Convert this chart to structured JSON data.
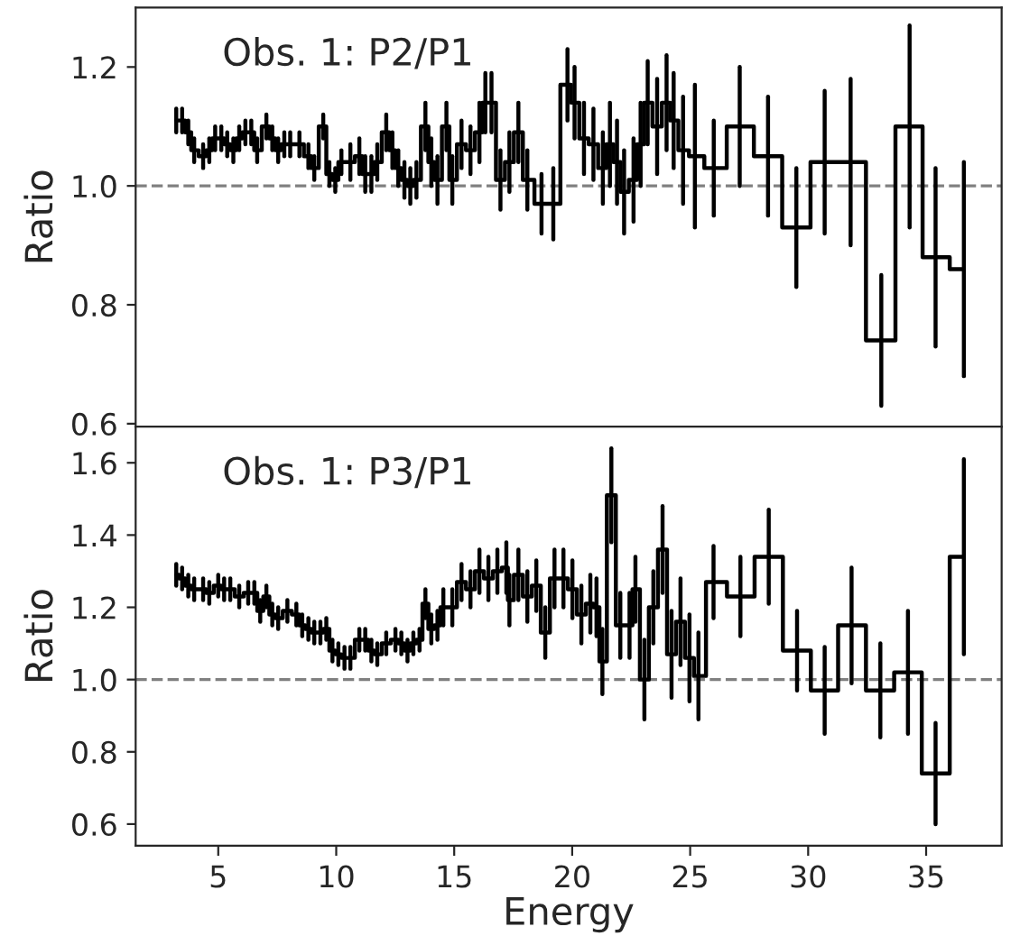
{
  "chart_data": [
    {
      "type": "step",
      "ylabel": "Ratio",
      "annotations": [
        "Obs. 1: P2/P1"
      ],
      "xlim": [
        1.5,
        38.2
      ],
      "ylim": [
        0.595,
        1.3
      ],
      "xticks": [
        5,
        10,
        15,
        20,
        25,
        30,
        35
      ],
      "yticks": [
        0.6,
        0.8,
        {
          "value": 1.0,
          "label": "1.0"
        },
        1.2
      ],
      "tick_labels": "y",
      "grid": false,
      "legend": false,
      "ref_lines": [
        {
          "axis": "y",
          "value": 1.0,
          "color": "#808080",
          "line_style": "dashed"
        }
      ],
      "series": [
        {
          "color": "#000000",
          "x": [
            3.22,
            3.47,
            3.73,
            3.98,
            4.36,
            4.62,
            4.87,
            5.13,
            5.38,
            5.64,
            5.89,
            6.15,
            6.4,
            6.65,
            7.04,
            7.29,
            7.54,
            7.8,
            8.05,
            8.44,
            8.82,
            9.07,
            9.45,
            9.71,
            9.96,
            10.22,
            10.6,
            10.98,
            11.23,
            11.49,
            11.74,
            12.12,
            12.38,
            12.63,
            12.89,
            13.14,
            13.4,
            13.78,
            14.03,
            14.29,
            14.67,
            14.92,
            15.31,
            15.69,
            16.07,
            16.32,
            16.58,
            16.96,
            17.34,
            17.72,
            18.1,
            18.7,
            19.2,
            19.8,
            20.1,
            20.5,
            20.9,
            21.3,
            21.6,
            21.9,
            22.2,
            22.6,
            22.9,
            23.2,
            23.6,
            24.0,
            24.3,
            24.7,
            25.2,
            26.0,
            27.1,
            28.3,
            29.5,
            30.7,
            31.8,
            33.1,
            34.3,
            35.4,
            36.6
          ],
          "values": [
            1.11,
            1.11,
            1.09,
            1.06,
            1.05,
            1.06,
            1.08,
            1.08,
            1.07,
            1.06,
            1.08,
            1.09,
            1.09,
            1.06,
            1.1,
            1.08,
            1.06,
            1.07,
            1.07,
            1.07,
            1.05,
            1.03,
            1.1,
            1.02,
            1.01,
            1.04,
            1.04,
            1.05,
            1.02,
            1.02,
            1.04,
            1.09,
            1.06,
            1.03,
            1.01,
            1.0,
            1.01,
            1.1,
            1.04,
            1.01,
            1.1,
            1.01,
            1.07,
            1.06,
            1.09,
            1.14,
            1.14,
            1.01,
            1.04,
            1.09,
            1.01,
            0.97,
            0.97,
            1.17,
            1.14,
            1.08,
            1.07,
            1.03,
            1.07,
            1.04,
            0.99,
            1.01,
            1.07,
            1.14,
            1.1,
            1.14,
            1.11,
            1.06,
            1.05,
            1.03,
            1.1,
            1.05,
            0.93,
            1.04,
            1.04,
            0.74,
            1.1,
            0.88,
            0.86
          ],
          "errors": [
            0.02,
            0.02,
            0.02,
            0.02,
            0.02,
            0.02,
            0.02,
            0.02,
            0.02,
            0.02,
            0.02,
            0.02,
            0.02,
            0.02,
            0.02,
            0.02,
            0.02,
            0.02,
            0.02,
            0.02,
            0.02,
            0.02,
            0.02,
            0.02,
            0.02,
            0.02,
            0.03,
            0.03,
            0.03,
            0.03,
            0.03,
            0.03,
            0.03,
            0.03,
            0.03,
            0.03,
            0.03,
            0.04,
            0.04,
            0.04,
            0.04,
            0.04,
            0.04,
            0.04,
            0.05,
            0.05,
            0.05,
            0.05,
            0.05,
            0.05,
            0.05,
            0.05,
            0.06,
            0.06,
            0.06,
            0.06,
            0.06,
            0.06,
            0.07,
            0.07,
            0.07,
            0.07,
            0.07,
            0.07,
            0.08,
            0.08,
            0.08,
            0.09,
            0.12,
            0.08,
            0.1,
            0.1,
            0.1,
            0.12,
            0.14,
            0.11,
            0.17,
            0.15,
            0.18
          ]
        }
      ]
    },
    {
      "type": "step",
      "xlabel": "Energy",
      "ylabel": "Ratio",
      "annotations": [
        "Obs. 1: P3/P1"
      ],
      "xlim": [
        1.5,
        38.2
      ],
      "ylim": [
        0.54,
        1.7
      ],
      "xticks": [
        5,
        10,
        15,
        20,
        25,
        30,
        35
      ],
      "yticks": [
        0.6,
        0.8,
        {
          "value": 1.0,
          "label": "1.0"
        },
        1.2,
        1.4,
        1.6
      ],
      "grid": false,
      "legend": false,
      "ref_lines": [
        {
          "axis": "y",
          "value": 1.0,
          "color": "#808080",
          "line_style": "dashed"
        }
      ],
      "series": [
        {
          "color": "#000000",
          "x": [
            3.22,
            3.47,
            3.73,
            3.98,
            4.36,
            4.62,
            5.0,
            5.25,
            5.51,
            5.89,
            6.27,
            6.53,
            6.78,
            7.04,
            7.29,
            7.54,
            7.93,
            8.31,
            8.56,
            8.82,
            9.07,
            9.33,
            9.58,
            9.84,
            10.09,
            10.35,
            10.6,
            10.98,
            11.23,
            11.49,
            11.74,
            12.12,
            12.51,
            12.76,
            13.02,
            13.27,
            13.53,
            13.78,
            14.03,
            14.29,
            14.54,
            14.92,
            15.31,
            15.69,
            16.07,
            16.45,
            16.83,
            17.21,
            17.34,
            17.72,
            18.1,
            18.48,
            18.86,
            19.25,
            19.63,
            20.01,
            20.39,
            20.77,
            21.03,
            21.28,
            21.66,
            22.04,
            22.43,
            22.68,
            23.06,
            23.44,
            23.83,
            24.21,
            24.59,
            24.97,
            25.35,
            25.99,
            27.13,
            28.33,
            29.53,
            30.7,
            31.84,
            33.06,
            34.23,
            35.4,
            36.6
          ],
          "values": [
            1.29,
            1.28,
            1.26,
            1.25,
            1.25,
            1.24,
            1.26,
            1.25,
            1.25,
            1.23,
            1.24,
            1.24,
            1.19,
            1.23,
            1.18,
            1.17,
            1.19,
            1.18,
            1.15,
            1.14,
            1.13,
            1.13,
            1.14,
            1.08,
            1.07,
            1.06,
            1.06,
            1.11,
            1.11,
            1.08,
            1.07,
            1.1,
            1.11,
            1.1,
            1.08,
            1.1,
            1.11,
            1.21,
            1.14,
            1.15,
            1.2,
            1.2,
            1.27,
            1.25,
            1.3,
            1.28,
            1.3,
            1.31,
            1.22,
            1.29,
            1.23,
            1.26,
            1.13,
            1.28,
            1.28,
            1.25,
            1.18,
            1.21,
            1.2,
            1.05,
            1.51,
            1.15,
            1.15,
            1.25,
            1.0,
            1.2,
            1.36,
            1.07,
            1.16,
            1.06,
            1.01,
            1.27,
            1.23,
            1.34,
            1.08,
            0.97,
            1.15,
            0.97,
            1.02,
            0.74,
            1.34
          ],
          "errors": [
            0.03,
            0.03,
            0.03,
            0.03,
            0.03,
            0.03,
            0.03,
            0.03,
            0.03,
            0.03,
            0.03,
            0.03,
            0.03,
            0.03,
            0.03,
            0.03,
            0.03,
            0.03,
            0.03,
            0.03,
            0.03,
            0.03,
            0.03,
            0.03,
            0.03,
            0.03,
            0.03,
            0.03,
            0.03,
            0.03,
            0.03,
            0.03,
            0.03,
            0.03,
            0.03,
            0.03,
            0.03,
            0.04,
            0.04,
            0.04,
            0.05,
            0.05,
            0.05,
            0.05,
            0.06,
            0.06,
            0.06,
            0.07,
            0.07,
            0.07,
            0.07,
            0.07,
            0.07,
            0.08,
            0.08,
            0.08,
            0.08,
            0.08,
            0.08,
            0.09,
            0.13,
            0.09,
            0.09,
            0.09,
            0.11,
            0.1,
            0.12,
            0.12,
            0.12,
            0.12,
            0.12,
            0.1,
            0.11,
            0.13,
            0.11,
            0.12,
            0.16,
            0.13,
            0.17,
            0.14,
            0.27
          ]
        }
      ]
    }
  ]
}
